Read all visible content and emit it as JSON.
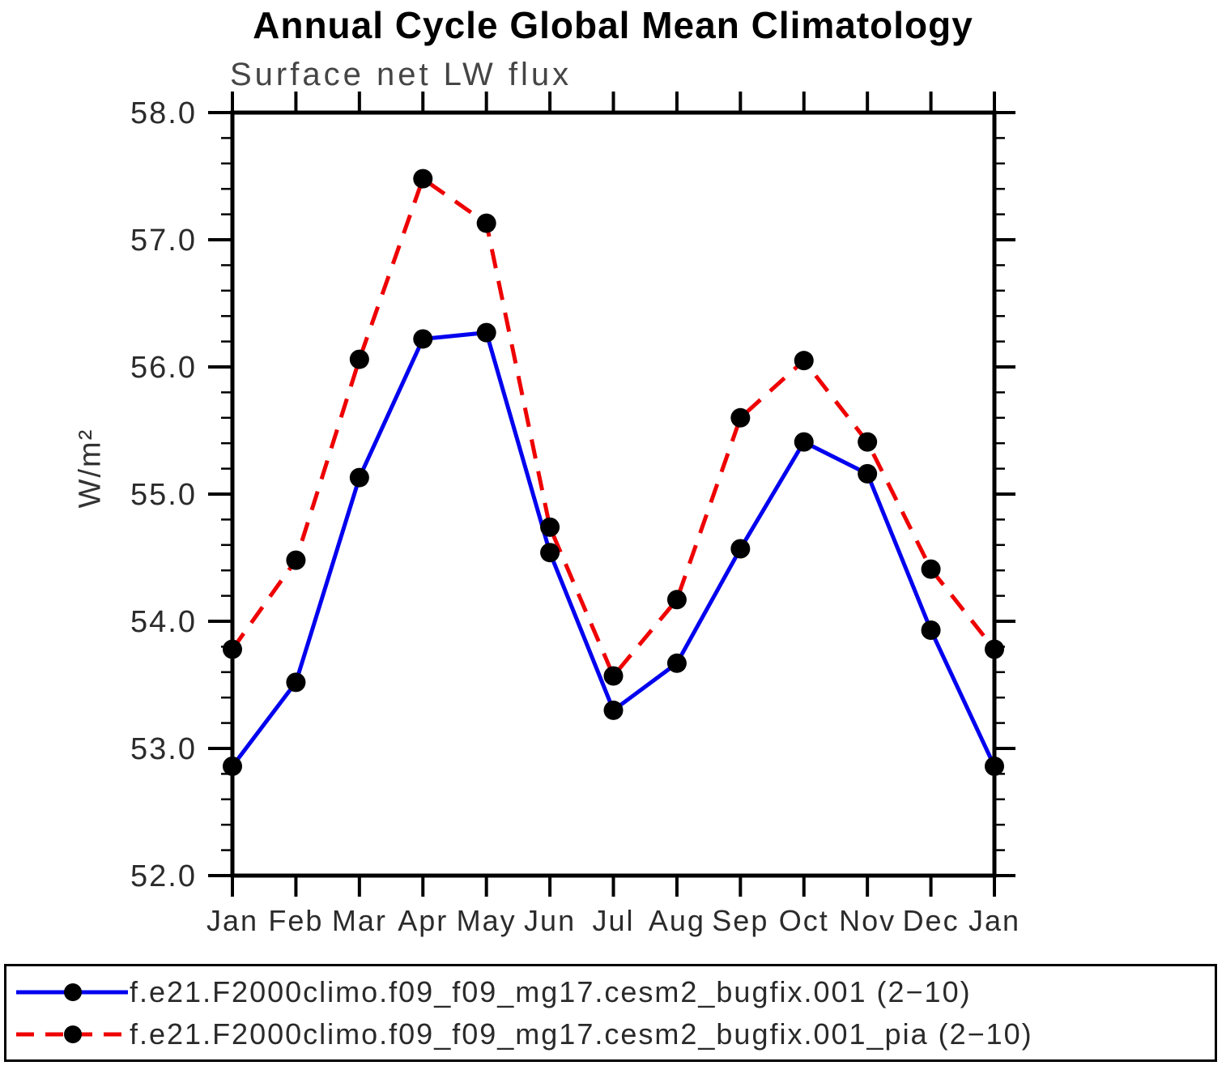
{
  "chart_data": {
    "type": "line",
    "title": "Annual Cycle Global Mean Climatology",
    "subtitle": "Surface net LW flux",
    "ylabel": "W/m²",
    "xlabel": "",
    "categories": [
      "Jan",
      "Feb",
      "Mar",
      "Apr",
      "May",
      "Jun",
      "Jul",
      "Aug",
      "Sep",
      "Oct",
      "Nov",
      "Dec",
      "Jan"
    ],
    "ylim": [
      52.0,
      58.0
    ],
    "ytick_major_step": 1.0,
    "ytick_minor_step": 0.2,
    "ytick_labels": [
      "58.0",
      "57.0",
      "56.0",
      "55.0",
      "54.0",
      "53.0",
      "52.0"
    ],
    "grid": false,
    "legend_position": "bottom",
    "axis_color": "#000000",
    "marker_color": "#000000",
    "series": [
      {
        "name": "f.e21.F2000climo.f09_f09_mg17.cesm2_bugfix.001 (2−10)",
        "color": "#0000ee",
        "line_style": "solid",
        "marker": "circle",
        "values": [
          52.86,
          53.52,
          55.13,
          56.22,
          56.27,
          54.54,
          53.3,
          53.67,
          54.57,
          55.41,
          55.16,
          53.93,
          52.86
        ]
      },
      {
        "name": "f.e21.F2000climo.f09_f09_mg17.cesm2_bugfix.001_pia (2−10)",
        "color": "#ee0000",
        "line_style": "dashed",
        "marker": "circle",
        "values": [
          53.78,
          54.48,
          56.06,
          57.48,
          57.13,
          54.74,
          53.57,
          54.17,
          55.6,
          56.05,
          55.41,
          54.41,
          53.78
        ]
      }
    ]
  }
}
